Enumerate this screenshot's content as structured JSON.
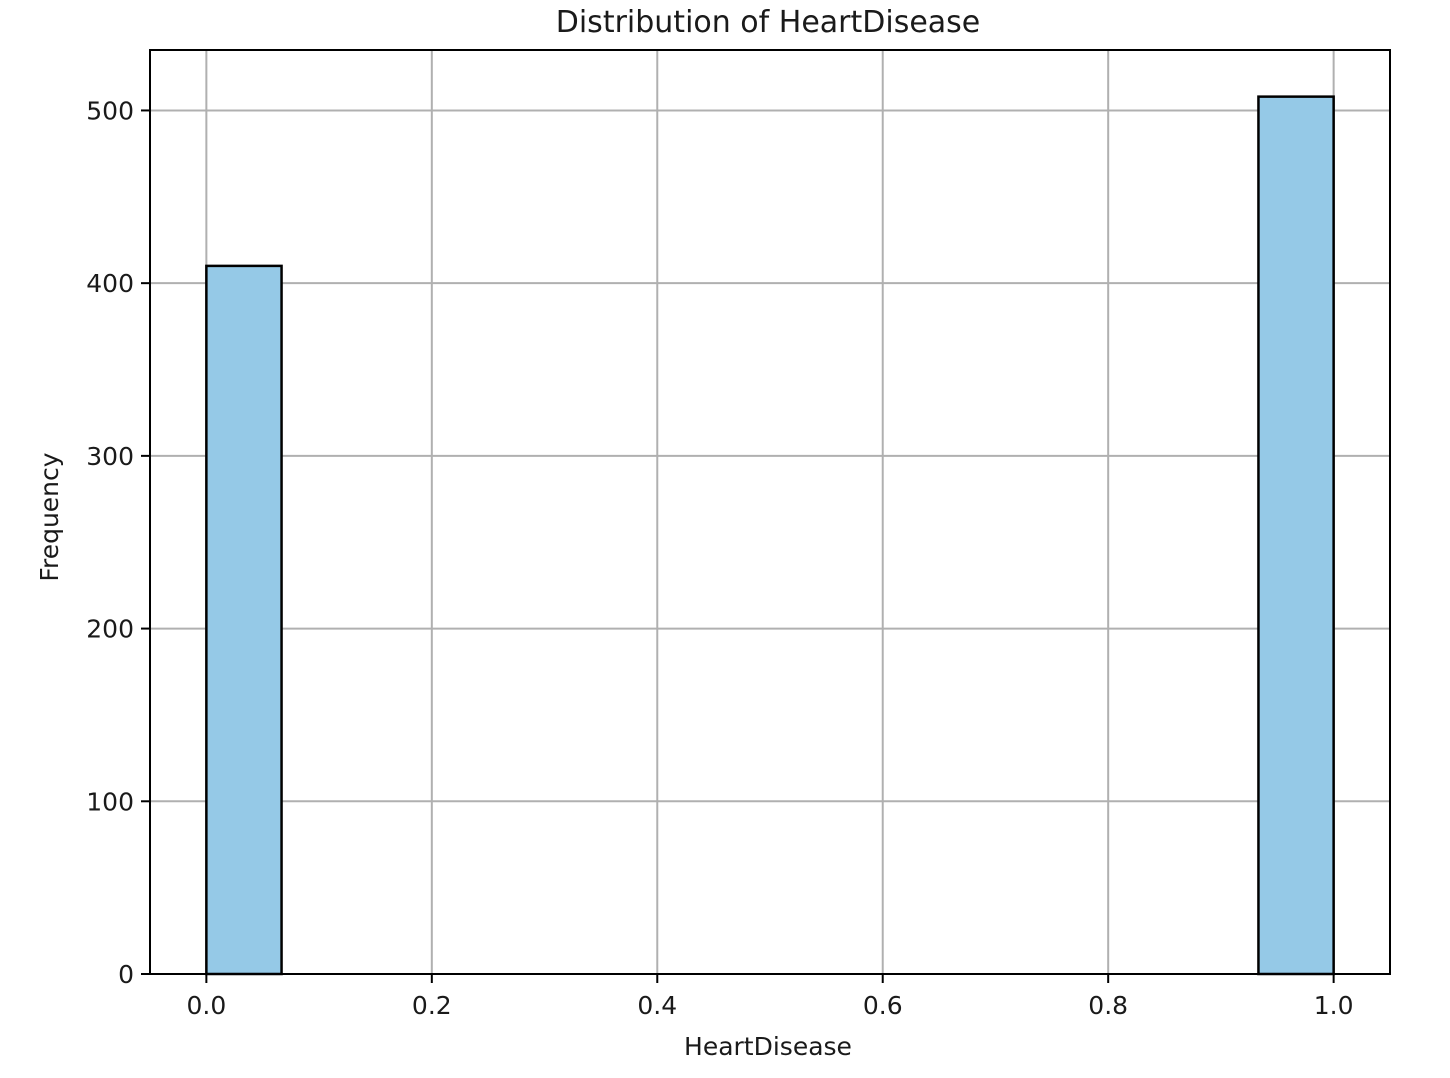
{
  "chart_data": {
    "type": "bar",
    "title": "Distribution of HeartDisease",
    "xlabel": "HeartDisease",
    "ylabel": "Frequency",
    "xlim": [
      -0.05,
      1.05
    ],
    "ylim": [
      0,
      535
    ],
    "xticks": [
      0.0,
      0.2,
      0.4,
      0.6,
      0.8,
      1.0
    ],
    "xtick_labels": [
      "0.0",
      "0.2",
      "0.4",
      "0.6",
      "0.8",
      "1.0"
    ],
    "yticks": [
      0,
      100,
      200,
      300,
      400,
      500
    ],
    "ytick_labels": [
      "0",
      "100",
      "200",
      "300",
      "400",
      "500"
    ],
    "grid": true,
    "bins": [
      {
        "x0": 0.0,
        "x1": 0.0667,
        "value": 410
      },
      {
        "x0": 0.9333,
        "x1": 1.0,
        "value": 508
      }
    ],
    "colors": {
      "bar_fill": "#95c9e7",
      "bar_edge": "#000000",
      "grid": "#b0b0b0",
      "axes": "#000000",
      "text": "#1a1a1a"
    }
  }
}
